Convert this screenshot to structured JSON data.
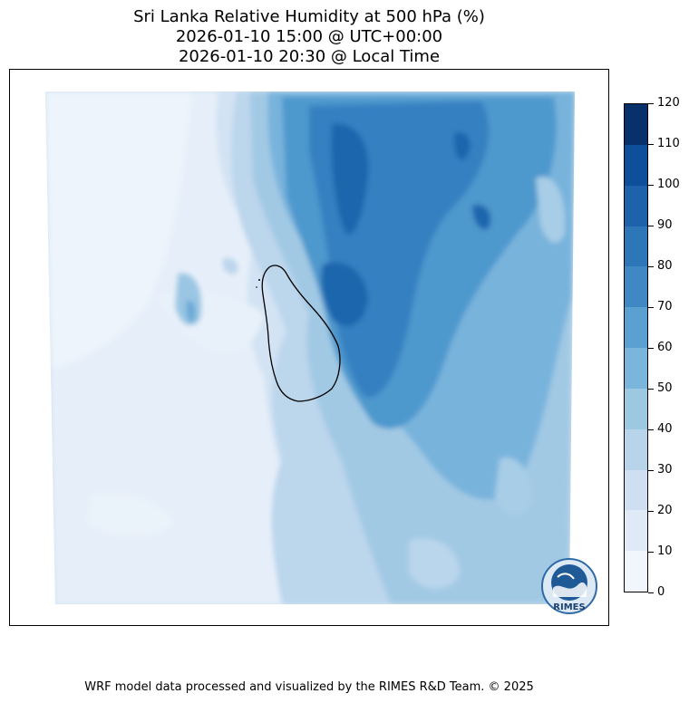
{
  "title": {
    "line1": "Sri Lanka Relative Humidity at 500 hPa (%)",
    "line2": "2026-01-10 15:00 @ UTC+00:00",
    "line3": "2026-01-10 20:30 @ Local Time"
  },
  "colorbar": {
    "ticks": [
      "0",
      "10",
      "20",
      "30",
      "40",
      "50",
      "60",
      "70",
      "80",
      "90",
      "100",
      "110",
      "120"
    ],
    "colors": [
      "#f0f6fc",
      "#dfeaf6",
      "#cfdff1",
      "#b8d4ea",
      "#9dc8e1",
      "#7ab6db",
      "#5aa0d0",
      "#3f88c4",
      "#2d76b8",
      "#1d62aa",
      "#0e4f9c",
      "#08306b"
    ]
  },
  "logo": {
    "text": "RIMES"
  },
  "footer": "WRF model data processed and visualized by the RIMES R&D Team. © 2025"
}
